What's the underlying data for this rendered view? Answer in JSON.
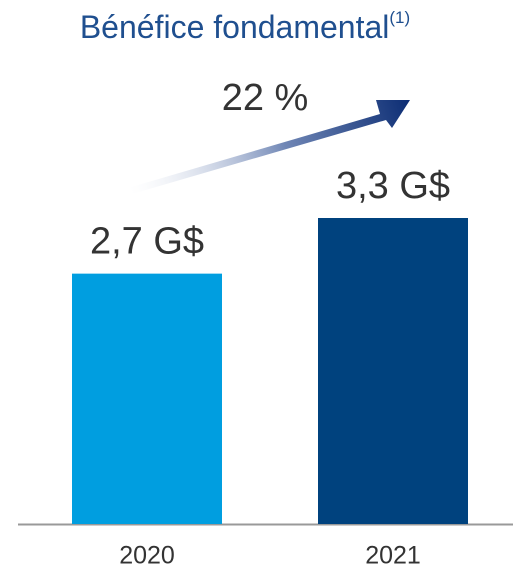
{
  "chart_data": {
    "type": "bar",
    "title": "Bénéfice fondamental",
    "title_note": "(1)",
    "annotation": "22 %",
    "categories": [
      "2020",
      "2021"
    ],
    "values": [
      2.7,
      3.3
    ],
    "value_labels": [
      "2,7 G$",
      "3,3 G$"
    ],
    "colors": [
      "#009ee0",
      "#00427e"
    ]
  }
}
